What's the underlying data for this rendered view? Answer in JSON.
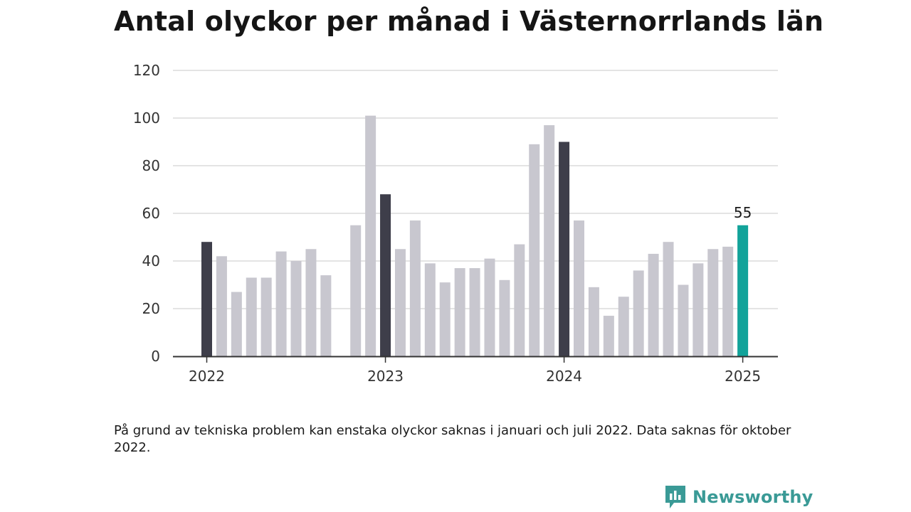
{
  "title": "Antal olyckor per månad i Västernorrlands län",
  "footnote": "På grund av tekniska problem kan enstaka olyckor saknas i januari och juli 2022. Data saknas för oktober 2022.",
  "brand": {
    "name": "Newsworthy",
    "icon": "newsworthy-logo-icon",
    "color": "#3a9a96"
  },
  "colors": {
    "bar": "#c8c7cf",
    "january": "#3e3e4a",
    "latest": "#12a39a",
    "grid": "#dcdcdc",
    "axis": "#333333"
  },
  "chart_data": {
    "type": "bar",
    "title": "Antal olyckor per månad i Västernorrlands län",
    "xlabel": "",
    "ylabel": "",
    "ylim": [
      0,
      120
    ],
    "yticks": [
      "0",
      "20",
      "40",
      "60",
      "80",
      "100",
      "120"
    ],
    "xticks": [
      "2022",
      "2023",
      "2024",
      "2025"
    ],
    "grid": true,
    "categories": [
      "2022-01",
      "2022-02",
      "2022-03",
      "2022-04",
      "2022-05",
      "2022-06",
      "2022-07",
      "2022-08",
      "2022-09",
      "2022-10",
      "2022-11",
      "2022-12",
      "2023-01",
      "2023-02",
      "2023-03",
      "2023-04",
      "2023-05",
      "2023-06",
      "2023-07",
      "2023-08",
      "2023-09",
      "2023-10",
      "2023-11",
      "2023-12",
      "2024-01",
      "2024-02",
      "2024-03",
      "2024-04",
      "2024-05",
      "2024-06",
      "2024-07",
      "2024-08",
      "2024-09",
      "2024-10",
      "2024-11",
      "2024-12",
      "2025-01"
    ],
    "values": [
      48,
      42,
      27,
      33,
      33,
      44,
      40,
      45,
      34,
      null,
      55,
      101,
      68,
      45,
      57,
      39,
      31,
      37,
      37,
      41,
      32,
      47,
      89,
      97,
      90,
      57,
      29,
      17,
      25,
      36,
      43,
      48,
      30,
      39,
      45,
      46,
      55
    ],
    "annotations": [
      {
        "category": "2025-01",
        "text": "55"
      }
    ]
  }
}
